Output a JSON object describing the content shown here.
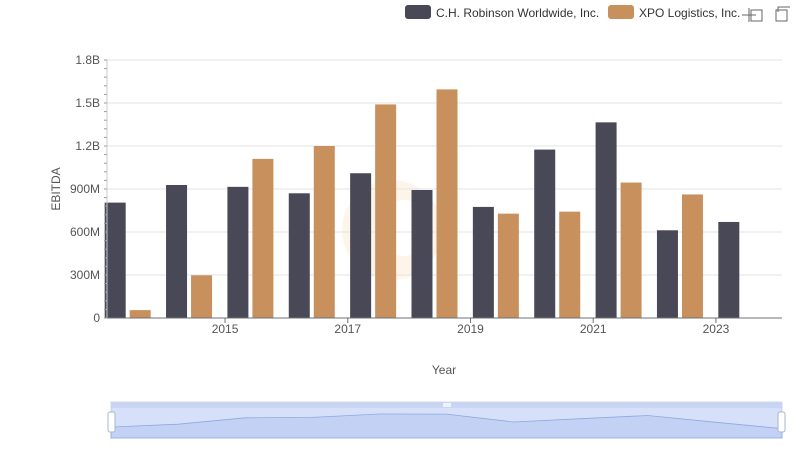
{
  "chart_data": {
    "type": "bar",
    "xlabel": "Year",
    "ylabel": "EBITDA",
    "ylim": [
      0,
      1800000000
    ],
    "yticks": [
      {
        "value": 0,
        "label": "0"
      },
      {
        "value": 300000000,
        "label": "300M"
      },
      {
        "value": 600000000,
        "label": "600M"
      },
      {
        "value": 900000000,
        "label": "900M"
      },
      {
        "value": 1200000000,
        "label": "1.2B"
      },
      {
        "value": 1500000000,
        "label": "1.5B"
      },
      {
        "value": 1800000000,
        "label": "1.8B"
      }
    ],
    "categories": [
      "2014",
      "2015",
      "2016",
      "2017",
      "2018",
      "2019",
      "2020",
      "2021",
      "2022",
      "2023",
      "2024"
    ],
    "xtick_labels": [
      "2015",
      "2017",
      "2019",
      "2021",
      "2023"
    ],
    "series": [
      {
        "name": "C.H. Robinson Worldwide, Inc.",
        "color": "#484857",
        "values": [
          805000000,
          928000000,
          915000000,
          870000000,
          1010000000,
          893000000,
          775000000,
          1175000000,
          1365000000,
          612000000,
          670000000
        ]
      },
      {
        "name": "XPO Logistics, Inc.",
        "color": "#c8905c",
        "values": [
          55000000,
          298000000,
          1110000000,
          1200000000,
          1490000000,
          1595000000,
          728000000,
          742000000,
          945000000,
          862000000,
          null
        ]
      }
    ],
    "legend_position": "top-right",
    "grid": true
  },
  "toolbar": {
    "icons": [
      "zoom-icon",
      "restore-icon"
    ]
  }
}
